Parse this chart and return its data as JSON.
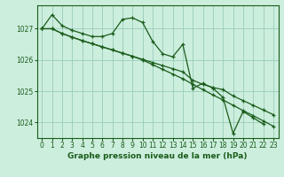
{
  "title": "Graphe pression niveau de la mer (hPa)",
  "background_color": "#cceedd",
  "grid_color": "#99ccbb",
  "line_color": "#1a5c1a",
  "x_values": [
    0,
    1,
    2,
    3,
    4,
    5,
    6,
    7,
    8,
    9,
    10,
    11,
    12,
    13,
    14,
    15,
    16,
    17,
    18,
    19,
    20,
    21,
    22,
    23
  ],
  "series1": [
    1027.0,
    1027.45,
    1027.1,
    1026.95,
    1026.85,
    1026.75,
    1026.75,
    1026.85,
    1027.3,
    1027.35,
    1027.2,
    1026.6,
    1026.2,
    1026.1,
    1026.5,
    1025.1,
    1025.25,
    1025.1,
    1024.8,
    1023.65,
    1024.35,
    1024.15,
    1023.95,
    null
  ],
  "series2": [
    1027.0,
    1027.0,
    1026.85,
    1026.73,
    1026.62,
    1026.52,
    1026.42,
    1026.32,
    1026.22,
    1026.12,
    1026.0,
    1025.85,
    1025.7,
    1025.55,
    1025.4,
    1025.22,
    1025.05,
    1024.88,
    1024.72,
    1024.55,
    1024.38,
    1024.22,
    1024.05,
    1023.88
  ],
  "series3": [
    1027.0,
    1027.0,
    1026.85,
    1026.73,
    1026.62,
    1026.52,
    1026.42,
    1026.32,
    1026.22,
    1026.12,
    1026.02,
    1025.92,
    1025.82,
    1025.72,
    1025.62,
    1025.35,
    1025.22,
    1025.12,
    1025.05,
    1024.85,
    1024.7,
    1024.55,
    1024.4,
    1024.25
  ],
  "ylim": [
    1023.5,
    1027.75
  ],
  "yticks": [
    1024,
    1025,
    1026,
    1027
  ],
  "xlim": [
    -0.5,
    23.5
  ],
  "xticks": [
    0,
    1,
    2,
    3,
    4,
    5,
    6,
    7,
    8,
    9,
    10,
    11,
    12,
    13,
    14,
    15,
    16,
    17,
    18,
    19,
    20,
    21,
    22,
    23
  ],
  "tick_fontsize": 5.5,
  "xlabel_fontsize": 6.5
}
